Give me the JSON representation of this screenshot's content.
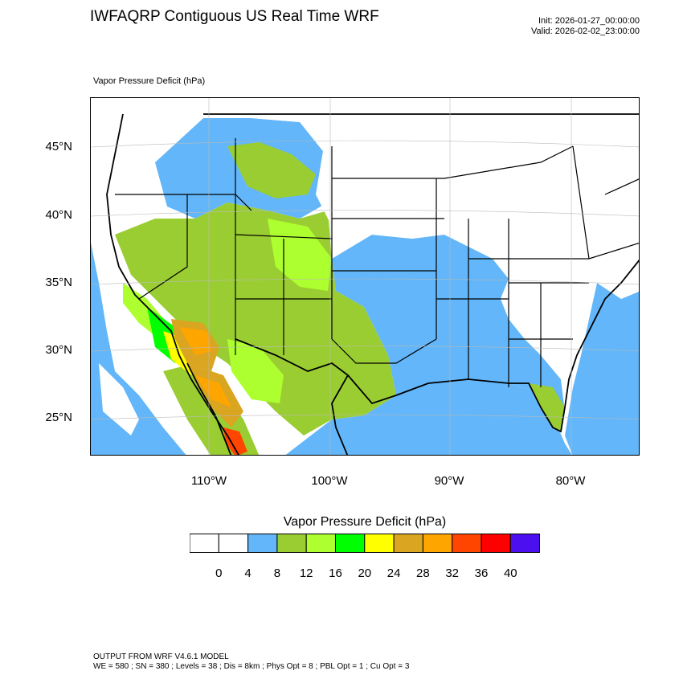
{
  "header": {
    "title": "IWFAQRP Contiguous US Real Time WRF",
    "init": "Init: 2026-01-27_00:00:00",
    "valid": "Valid: 2026-02-02_23:00:00"
  },
  "field": {
    "label": "Vapor Pressure Deficit   (hPa)"
  },
  "map": {
    "lat_labels": [
      "45°N",
      "40°N",
      "35°N",
      "30°N",
      "25°N"
    ],
    "lon_labels": [
      "110°W",
      "100°W",
      "90°W",
      "80°W"
    ],
    "colors": {
      "ocean": "#62b6f9",
      "land_low": "#ffffff",
      "vpd_4_8": "#62b6f9",
      "vpd_8_12": "#9acd32",
      "vpd_12_16": "#adff2f",
      "vpd_16_20": "#00ff00",
      "vpd_20_24": "#ffff00",
      "vpd_24_28": "#daa520",
      "vpd_28_32": "#ffa500",
      "vpd_32_36": "#ff4500",
      "vpd_36_40": "#ff0000",
      "vpd_40_plus": "#4b0ff0"
    }
  },
  "legend": {
    "title": "Vapor Pressure Deficit  (hPa)",
    "labels": [
      "0",
      "4",
      "8",
      "12",
      "16",
      "20",
      "24",
      "28",
      "32",
      "36",
      "40"
    ],
    "colors": [
      "#ffffff",
      "#ffffff",
      "#62b6f9",
      "#9acd32",
      "#adff2f",
      "#00ff00",
      "#ffff00",
      "#daa520",
      "#ffa500",
      "#ff4500",
      "#ff0000",
      "#4b0ff0"
    ]
  },
  "footer": {
    "line1": "OUTPUT FROM WRF V4.6.1 MODEL",
    "line2": "WE = 580 ; SN = 380 ; Levels = 38 ; Dis = 8km ; Phys Opt = 8 ; PBL Opt = 1 ; Cu Opt = 3"
  }
}
